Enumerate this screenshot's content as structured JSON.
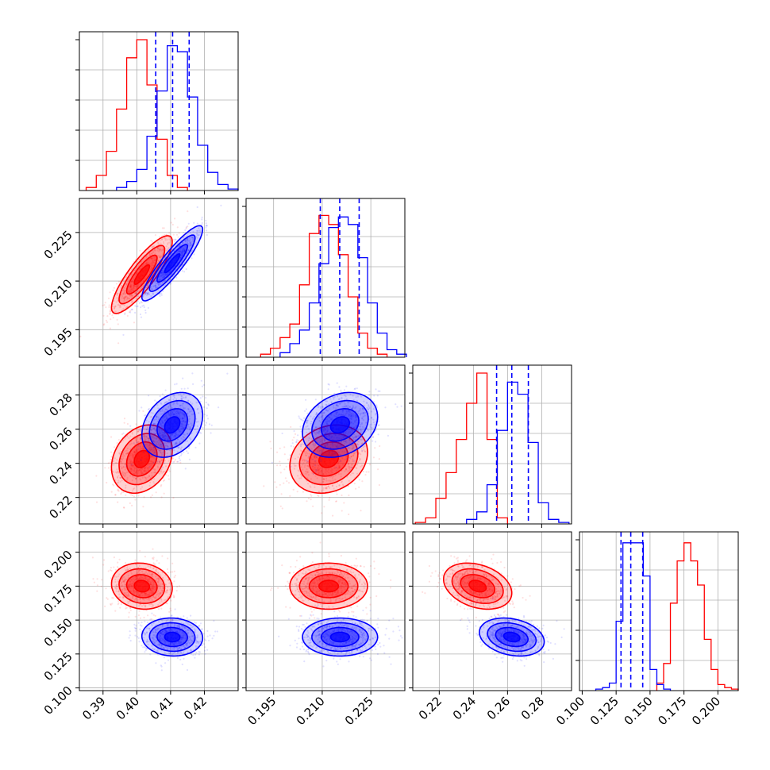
{
  "chart_data": {
    "type": "corner",
    "grid": true,
    "colors": {
      "red": "#ff0000",
      "blue": "#0000ff"
    },
    "parameters": [
      {
        "range": [
          0.383,
          0.43
        ],
        "ticks": [
          0.39,
          0.4,
          0.41,
          0.42
        ],
        "tick_labels": [
          "0.39",
          "0.40",
          "0.41",
          "0.42"
        ],
        "quantiles_blue": [
          0.4056,
          0.4106,
          0.4155
        ]
      },
      {
        "range": [
          0.1865,
          0.2355
        ],
        "ticks": [
          0.195,
          0.21,
          0.225
        ],
        "tick_labels": [
          "0.195",
          "0.210",
          "0.225"
        ],
        "quantiles_blue": [
          0.2094,
          0.2154,
          0.2214
        ]
      },
      {
        "range": [
          0.2045,
          0.2975
        ],
        "ticks": [
          0.22,
          0.24,
          0.26,
          0.28
        ],
        "tick_labels": [
          "0.22",
          "0.24",
          "0.26",
          "0.28"
        ],
        "quantiles_blue": [
          0.2536,
          0.2625,
          0.2722
        ]
      },
      {
        "range": [
          0.098,
          0.215
        ],
        "ticks": [
          0.1,
          0.125,
          0.15,
          0.175,
          0.2
        ],
        "tick_labels": [
          "0.100",
          "0.125",
          "0.150",
          "0.175",
          "0.200"
        ],
        "quantiles_blue": [
          0.1286,
          0.1358,
          0.1446
        ]
      }
    ],
    "histograms": [
      {
        "red_bins": [
          0.385,
          0.388,
          0.391,
          0.394,
          0.397,
          0.4,
          0.403,
          0.406,
          0.409,
          0.412
        ],
        "red_counts": [
          0.02,
          0.1,
          0.26,
          0.54,
          0.88,
          1.0,
          0.7,
          0.34,
          0.1,
          0.02
        ],
        "blue_bins": [
          0.394,
          0.397,
          0.4,
          0.403,
          0.406,
          0.409,
          0.412,
          0.415,
          0.418,
          0.421,
          0.424,
          0.427
        ],
        "blue_counts": [
          0.02,
          0.06,
          0.14,
          0.36,
          0.66,
          0.96,
          0.92,
          0.62,
          0.3,
          0.12,
          0.04,
          0.01
        ]
      },
      {
        "red_bins": [
          0.191,
          0.194,
          0.197,
          0.2,
          0.203,
          0.206,
          0.209,
          0.212,
          0.215,
          0.218,
          0.221,
          0.224,
          0.227
        ],
        "red_counts": [
          0.02,
          0.06,
          0.13,
          0.22,
          0.48,
          0.82,
          0.94,
          0.88,
          0.68,
          0.4,
          0.16,
          0.06,
          0.02
        ],
        "blue_bins": [
          0.197,
          0.2,
          0.203,
          0.206,
          0.209,
          0.212,
          0.215,
          0.218,
          0.221,
          0.224,
          0.227,
          0.23,
          0.233
        ],
        "blue_counts": [
          0.03,
          0.09,
          0.18,
          0.36,
          0.62,
          0.86,
          0.93,
          0.88,
          0.66,
          0.36,
          0.16,
          0.05,
          0.02
        ]
      },
      {
        "red_bins": [
          0.206,
          0.212,
          0.218,
          0.224,
          0.23,
          0.236,
          0.242,
          0.248,
          0.254
        ],
        "red_counts": [
          0.01,
          0.04,
          0.17,
          0.34,
          0.56,
          0.8,
          1.0,
          0.56,
          0.04
        ],
        "blue_bins": [
          0.236,
          0.242,
          0.248,
          0.254,
          0.26,
          0.266,
          0.272,
          0.278,
          0.284,
          0.29
        ],
        "blue_counts": [
          0.03,
          0.08,
          0.26,
          0.62,
          0.94,
          0.86,
          0.54,
          0.14,
          0.03,
          0.01
        ]
      },
      {
        "red_bins": [
          0.155,
          0.16,
          0.165,
          0.17,
          0.175,
          0.18,
          0.185,
          0.19,
          0.195,
          0.2,
          0.205,
          0.21
        ],
        "red_counts": [
          0.05,
          0.18,
          0.58,
          0.86,
          0.98,
          0.86,
          0.7,
          0.34,
          0.14,
          0.04,
          0.02,
          0.01
        ],
        "blue_bins": [
          0.11,
          0.115,
          0.12,
          0.125,
          0.13,
          0.135,
          0.14,
          0.145,
          0.15,
          0.155,
          0.16
        ],
        "blue_counts": [
          0.01,
          0.02,
          0.05,
          0.46,
          0.98,
          0.98,
          0.98,
          0.76,
          0.14,
          0.04,
          0.01
        ]
      }
    ],
    "correlations": {
      "1-0": {
        "red": 0.85,
        "blue": 0.9
      },
      "2-0": {
        "red": 0.25,
        "blue": 0.3
      },
      "2-1": {
        "red": 0.2,
        "blue": 0.25
      },
      "3-0": {
        "red": -0.1,
        "blue": -0.05
      },
      "3-1": {
        "red": 0.0,
        "blue": 0.0
      },
      "3-2": {
        "red": -0.3,
        "blue": -0.25
      }
    },
    "means": {
      "red": [
        0.4015,
        0.212,
        0.2425,
        0.175
      ],
      "blue": [
        0.4105,
        0.2155,
        0.2625,
        0.1375
      ]
    },
    "stds": {
      "red": [
        0.0045,
        0.006,
        0.01,
        0.0085
      ],
      "blue": [
        0.0045,
        0.0058,
        0.0095,
        0.007
      ]
    }
  }
}
